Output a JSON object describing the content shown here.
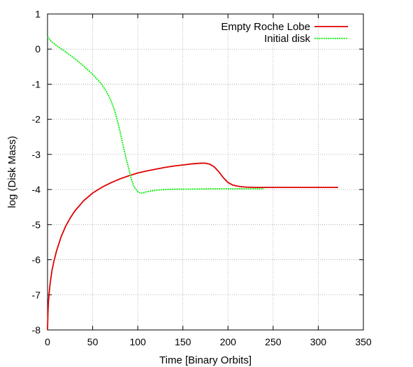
{
  "chart_data": {
    "type": "line",
    "xlabel": "Time [Binary Orbits]",
    "ylabel": "log (Disk Mass)",
    "xlim": [
      0,
      350
    ],
    "ylim": [
      -8,
      1
    ],
    "xticks": [
      0,
      50,
      100,
      150,
      200,
      250,
      300,
      350
    ],
    "yticks": [
      -8,
      -7,
      -6,
      -5,
      -4,
      -3,
      -2,
      -1,
      0,
      1
    ],
    "grid": true,
    "legend_position": "top-right",
    "series": [
      {
        "name": "Empty Roche Lobe",
        "color": "#e00000",
        "style": "solid",
        "x": [
          0,
          0.5,
          1,
          2,
          3,
          5,
          7,
          10,
          15,
          20,
          25,
          30,
          40,
          50,
          60,
          70,
          80,
          90,
          100,
          110,
          120,
          130,
          140,
          150,
          160,
          170,
          175,
          180,
          185,
          190,
          195,
          200,
          205,
          210,
          215,
          220,
          230,
          240,
          260,
          280,
          300,
          322
        ],
        "y": [
          -8.0,
          -7.5,
          -7.2,
          -6.9,
          -6.65,
          -6.3,
          -6.05,
          -5.75,
          -5.35,
          -5.05,
          -4.82,
          -4.62,
          -4.32,
          -4.1,
          -3.94,
          -3.81,
          -3.7,
          -3.61,
          -3.53,
          -3.47,
          -3.42,
          -3.37,
          -3.33,
          -3.3,
          -3.27,
          -3.25,
          -3.25,
          -3.28,
          -3.36,
          -3.5,
          -3.67,
          -3.8,
          -3.87,
          -3.9,
          -3.92,
          -3.93,
          -3.94,
          -3.94,
          -3.94,
          -3.94,
          -3.94,
          -3.94
        ]
      },
      {
        "name": "Initial disk",
        "color": "#00ee00",
        "style": "dashed",
        "x": [
          0,
          5,
          10,
          20,
          30,
          40,
          50,
          60,
          65,
          70,
          75,
          80,
          85,
          90,
          93,
          96,
          100,
          103,
          106,
          108,
          110,
          115,
          120,
          130,
          140,
          150,
          160,
          180,
          200,
          220,
          240
        ],
        "y": [
          0.35,
          0.2,
          0.1,
          -0.08,
          -0.27,
          -0.48,
          -0.72,
          -1.0,
          -1.2,
          -1.45,
          -1.8,
          -2.3,
          -2.9,
          -3.4,
          -3.72,
          -3.93,
          -4.06,
          -4.1,
          -4.1,
          -4.08,
          -4.06,
          -4.04,
          -4.02,
          -4.0,
          -3.99,
          -3.99,
          -3.99,
          -3.98,
          -3.98,
          -3.98,
          -3.98
        ]
      }
    ]
  }
}
